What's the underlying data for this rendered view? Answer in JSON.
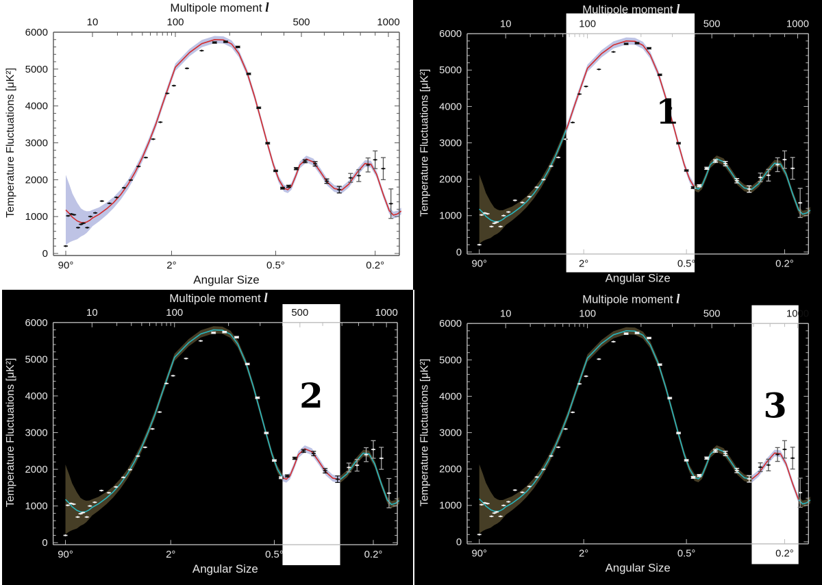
{
  "colors": {
    "model_red": "#d42a2a",
    "model_cyan": "#27b7c0",
    "band_blue": "#b7bde2",
    "band_olive": "#4a4128",
    "highlight": "#ffffff"
  },
  "chart_data": [
    {
      "type": "line",
      "panel": "plain",
      "title": "",
      "top_axis_label": "Multipole moment",
      "top_axis_symbol": "l",
      "xlabel": "Angular Size",
      "ylabel": "Temperature Fluctuations [μK²]",
      "ylim": [
        0,
        6000
      ],
      "yticks": [
        "0",
        "1000",
        "2000",
        "3000",
        "4000",
        "5000",
        "6000"
      ],
      "xticks_bottom": [
        "90°",
        "2°",
        "0.5°",
        "0.2°"
      ],
      "xticks_top": [
        "10",
        "100",
        "500",
        "1000"
      ],
      "highlight_label": "",
      "highlight_range_l": null
    },
    {
      "type": "line",
      "panel": "peak-1",
      "top_axis_label": "Multipole moment",
      "top_axis_symbol": "l",
      "xlabel": "Angular Size",
      "ylabel": "Temperature Fluctuations [μK²]",
      "ylim": [
        0,
        6000
      ],
      "yticks": [
        "0",
        "1000",
        "2000",
        "3000",
        "4000",
        "5000",
        "6000"
      ],
      "xticks_bottom": [
        "90°",
        "2°",
        "0.5°",
        "0.2°"
      ],
      "xticks_top": [
        "10",
        "100",
        "500",
        "1000"
      ],
      "highlight_label": "1",
      "highlight_range_l": [
        55,
        400
      ]
    },
    {
      "type": "line",
      "panel": "peak-2",
      "top_axis_label": "Multipole moment",
      "top_axis_symbol": "l",
      "xlabel": "Angular Size",
      "ylabel": "Temperature Fluctuations [μK²]",
      "ylim": [
        0,
        6000
      ],
      "yticks": [
        "0",
        "1000",
        "2000",
        "3000",
        "4000",
        "5000",
        "6000"
      ],
      "xticks_bottom": [
        "90°",
        "2°",
        "0.5°",
        "0.2°"
      ],
      "xticks_top": [
        "10",
        "100",
        "500",
        "1000"
      ],
      "highlight_label": "2",
      "highlight_range_l": [
        400,
        690
      ]
    },
    {
      "type": "line",
      "panel": "peak-3",
      "top_axis_label": "Multipole moment",
      "top_axis_symbol": "l",
      "xlabel": "Angular Size",
      "ylabel": "Temperature Fluctuations [μK²]",
      "ylim": [
        0,
        6000
      ],
      "yticks": [
        "0",
        "1000",
        "2000",
        "3000",
        "4000",
        "5000",
        "6000"
      ],
      "xticks_bottom": [
        "90°",
        "2°",
        "0.5°",
        "0.2°"
      ],
      "xticks_top": [
        "10",
        "100",
        "500",
        "1000"
      ],
      "highlight_label": "3",
      "highlight_range_l": [
        690,
        1010
      ]
    }
  ],
  "series": {
    "data_points": [
      {
        "l": 2,
        "v": 200,
        "e": 0
      },
      {
        "l": 2.3,
        "v": 1020,
        "e": 0
      },
      {
        "l": 2.8,
        "v": 1070,
        "e": 0
      },
      {
        "l": 3.3,
        "v": 1050,
        "e": 0
      },
      {
        "l": 4.2,
        "v": 700,
        "e": 0
      },
      {
        "l": 5.0,
        "v": 790,
        "e": 0
      },
      {
        "l": 5.8,
        "v": 820,
        "e": 0
      },
      {
        "l": 7.3,
        "v": 700,
        "e": 0
      },
      {
        "l": 8.8,
        "v": 1000,
        "e": 0
      },
      {
        "l": 10.8,
        "v": 1100,
        "e": 0
      },
      {
        "l": 13,
        "v": 1420,
        "e": 0
      },
      {
        "l": 16,
        "v": 1360,
        "e": 0
      },
      {
        "l": 19.5,
        "v": 1520,
        "e": 0
      },
      {
        "l": 24,
        "v": 1780,
        "e": 0
      },
      {
        "l": 29,
        "v": 1990,
        "e": 0
      },
      {
        "l": 36,
        "v": 2360,
        "e": 0
      },
      {
        "l": 44,
        "v": 2600,
        "e": 0
      },
      {
        "l": 54,
        "v": 3100,
        "e": 0
      },
      {
        "l": 66,
        "v": 3560,
        "e": 0
      },
      {
        "l": 80,
        "v": 4340,
        "e": 0
      },
      {
        "l": 96,
        "v": 4550,
        "e": 0
      },
      {
        "l": 116,
        "v": 5020,
        "e": 0
      },
      {
        "l": 140,
        "v": 5500,
        "e": 0
      },
      {
        "l": 165,
        "v": 5720,
        "e": 20
      },
      {
        "l": 190,
        "v": 5740,
        "e": 20
      },
      {
        "l": 222,
        "v": 5600,
        "e": 20
      },
      {
        "l": 255,
        "v": 4870,
        "e": 20
      },
      {
        "l": 290,
        "v": 3950,
        "e": 20
      },
      {
        "l": 325,
        "v": 2990,
        "e": 20
      },
      {
        "l": 360,
        "v": 2240,
        "e": 20
      },
      {
        "l": 393,
        "v": 1770,
        "e": 25
      },
      {
        "l": 425,
        "v": 1820,
        "e": 30
      },
      {
        "l": 468,
        "v": 2300,
        "e": 30
      },
      {
        "l": 515,
        "v": 2500,
        "e": 40
      },
      {
        "l": 558,
        "v": 2430,
        "e": 60
      },
      {
        "l": 612,
        "v": 1960,
        "e": 60
      },
      {
        "l": 676,
        "v": 1730,
        "e": 90
      },
      {
        "l": 740,
        "v": 2050,
        "e": 120
      },
      {
        "l": 790,
        "v": 2110,
        "e": 160
      },
      {
        "l": 850,
        "v": 2400,
        "e": 190
      },
      {
        "l": 900,
        "v": 2540,
        "e": 240
      },
      {
        "l": 960,
        "v": 2300,
        "e": 300
      },
      {
        "l": 1030,
        "v": 1350,
        "e": 400
      }
    ],
    "model_curve": [
      {
        "l": 2,
        "v": 1180
      },
      {
        "l": 2.5,
        "v": 1080
      },
      {
        "l": 3,
        "v": 980
      },
      {
        "l": 4,
        "v": 880
      },
      {
        "l": 5,
        "v": 840
      },
      {
        "l": 6,
        "v": 835
      },
      {
        "l": 7,
        "v": 850
      },
      {
        "l": 8.5,
        "v": 900
      },
      {
        "l": 10,
        "v": 960
      },
      {
        "l": 12,
        "v": 1060
      },
      {
        "l": 15,
        "v": 1220
      },
      {
        "l": 18,
        "v": 1380
      },
      {
        "l": 22,
        "v": 1600
      },
      {
        "l": 27,
        "v": 1880
      },
      {
        "l": 33,
        "v": 2220
      },
      {
        "l": 40,
        "v": 2600
      },
      {
        "l": 48,
        "v": 3020
      },
      {
        "l": 58,
        "v": 3500
      },
      {
        "l": 70,
        "v": 4050
      },
      {
        "l": 85,
        "v": 4600
      },
      {
        "l": 100,
        "v": 5050
      },
      {
        "l": 120,
        "v": 5450
      },
      {
        "l": 140,
        "v": 5690
      },
      {
        "l": 165,
        "v": 5800
      },
      {
        "l": 185,
        "v": 5790
      },
      {
        "l": 205,
        "v": 5680
      },
      {
        "l": 225,
        "v": 5420
      },
      {
        "l": 250,
        "v": 4900
      },
      {
        "l": 275,
        "v": 4250
      },
      {
        "l": 300,
        "v": 3580
      },
      {
        "l": 325,
        "v": 2950
      },
      {
        "l": 350,
        "v": 2400
      },
      {
        "l": 375,
        "v": 2000
      },
      {
        "l": 400,
        "v": 1770
      },
      {
        "l": 420,
        "v": 1730
      },
      {
        "l": 440,
        "v": 1820
      },
      {
        "l": 465,
        "v": 2100
      },
      {
        "l": 490,
        "v": 2400
      },
      {
        "l": 520,
        "v": 2560
      },
      {
        "l": 550,
        "v": 2480
      },
      {
        "l": 580,
        "v": 2230
      },
      {
        "l": 615,
        "v": 1930
      },
      {
        "l": 650,
        "v": 1760
      },
      {
        "l": 690,
        "v": 1720
      },
      {
        "l": 730,
        "v": 1880
      },
      {
        "l": 780,
        "v": 2200
      },
      {
        "l": 830,
        "v": 2440
      },
      {
        "l": 870,
        "v": 2420
      },
      {
        "l": 910,
        "v": 2150
      },
      {
        "l": 960,
        "v": 1600
      },
      {
        "l": 1010,
        "v": 1160
      },
      {
        "l": 1060,
        "v": 1040
      },
      {
        "l": 1110,
        "v": 1070
      },
      {
        "l": 1160,
        "v": 1150
      }
    ],
    "band_halfwidth_lowl": [
      {
        "l": 2,
        "v": 950
      },
      {
        "l": 3,
        "v": 640
      },
      {
        "l": 5,
        "v": 380
      },
      {
        "l": 8,
        "v": 260
      },
      {
        "l": 12,
        "v": 190
      },
      {
        "l": 20,
        "v": 140
      },
      {
        "l": 40,
        "v": 110
      },
      {
        "l": 100,
        "v": 100
      },
      {
        "l": 1200,
        "v": 90
      }
    ]
  }
}
